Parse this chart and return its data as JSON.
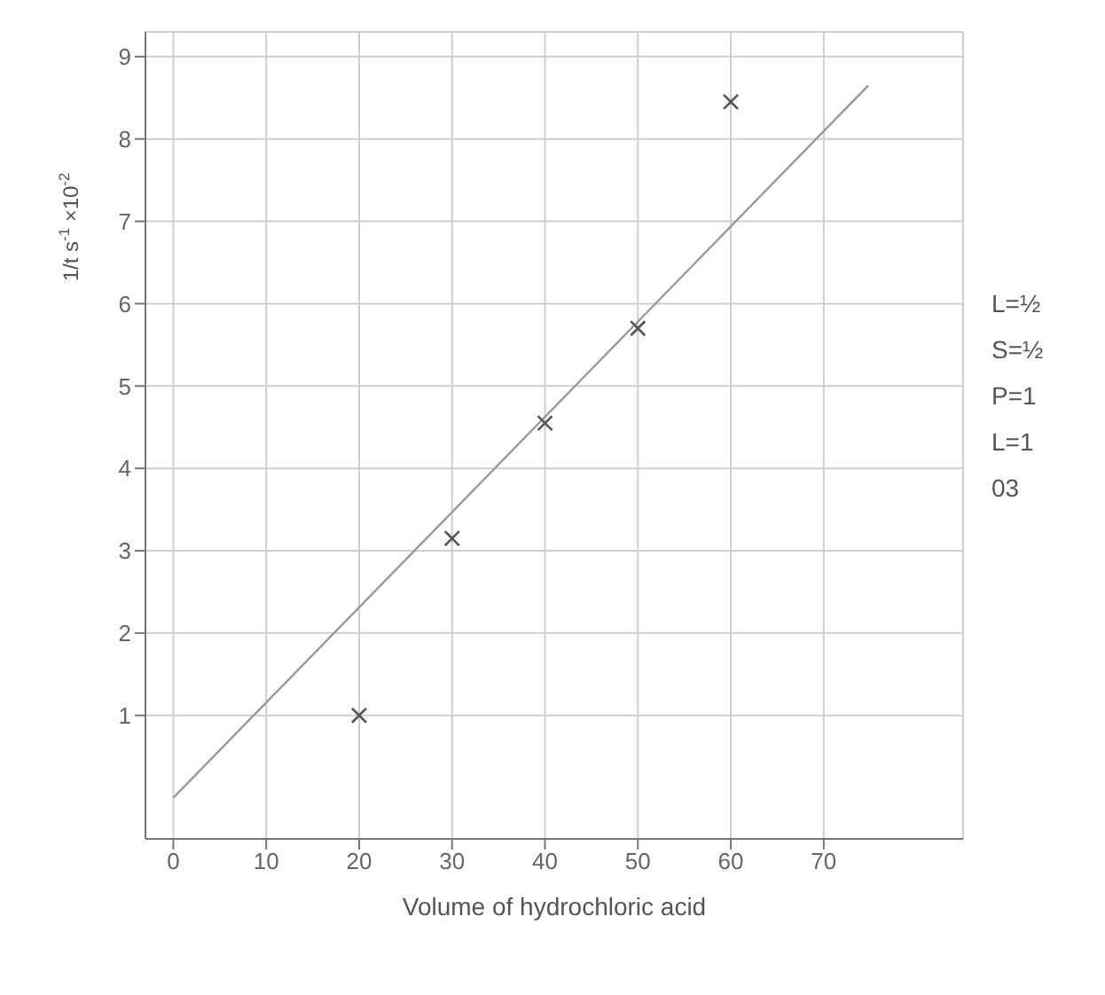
{
  "chart_data": {
    "type": "scatter",
    "xlabel": "Volume of hydrochloric acid",
    "ylabel": "1/t s$^{-1}$ ×10$^{-2}$",
    "series": [
      {
        "color": "#555555",
        "x": [
          20,
          30,
          40,
          50,
          60
        ],
        "values": [
          1.0,
          3.15,
          4.55,
          5.7,
          8.45
        ]
      },
      {
        "type": "line",
        "marker": "none",
        "color": "#999999",
        "x": [
          0,
          74.8
        ],
        "values": [
          0,
          8.65
        ]
      }
    ],
    "xlim": [
      -3,
      85
    ],
    "ylim": [
      -0.5,
      9.3
    ],
    "xticks": [
      0,
      10,
      20,
      30,
      40,
      50,
      60,
      70
    ],
    "yticks": [
      1,
      2,
      3,
      4,
      5,
      6,
      7,
      8,
      9
    ],
    "grid": true,
    "marker": "cross",
    "legend": false,
    "annotations": [
      "L=½",
      "S=½",
      "P=1",
      "L=1",
      "03"
    ]
  }
}
